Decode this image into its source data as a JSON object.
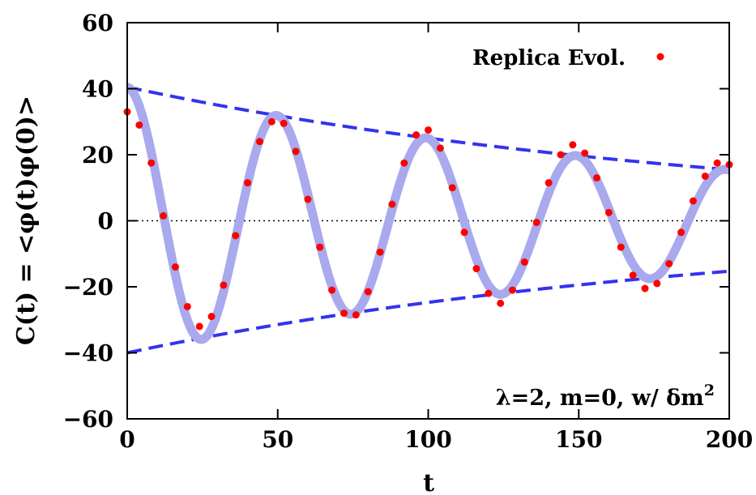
{
  "chart_data": {
    "type": "line",
    "xlabel": "t",
    "ylabel": "C(t) = <φ(t)φ(0)>",
    "xlim": [
      0,
      200
    ],
    "ylim": [
      -60,
      60
    ],
    "x_ticks": [
      0,
      50,
      100,
      150,
      200
    ],
    "y_ticks": [
      -60,
      -40,
      -20,
      0,
      20,
      40,
      60
    ],
    "x_tick_labels": [
      "0",
      "50",
      "100",
      "150",
      "200"
    ],
    "y_tick_labels": [
      "−60",
      "−40",
      "−20",
      "0",
      "20",
      "40",
      "60"
    ],
    "grid": false,
    "legend_position": "top-right",
    "annotation": {
      "main": "λ=2, m=0, w/ δm",
      "superscript": "2"
    },
    "series": [
      {
        "name": "Replica Evol.",
        "style": "points",
        "color": "#ff0000",
        "x": [
          0,
          4,
          8,
          12,
          16,
          20,
          24,
          28,
          32,
          36,
          40,
          44,
          48,
          52,
          56,
          60,
          64,
          68,
          72,
          76,
          80,
          84,
          88,
          92,
          96,
          100,
          104,
          108,
          112,
          116,
          120,
          124,
          128,
          132,
          136,
          140,
          144,
          148,
          152,
          156,
          160,
          164,
          168,
          172,
          176,
          180,
          184,
          188,
          192,
          196,
          200
        ],
        "y": [
          33,
          29,
          17.5,
          1.5,
          -14,
          -26,
          -32,
          -29,
          -19.5,
          -4.5,
          11.5,
          24,
          30,
          29.5,
          21,
          6.5,
          -8,
          -21,
          -28,
          -28.5,
          -21.5,
          -9.5,
          5,
          17.5,
          26,
          27.5,
          22,
          10,
          -3.5,
          -14.5,
          -22,
          -25,
          -21,
          -12.5,
          -0.5,
          11.5,
          20,
          23,
          20.5,
          13,
          2.5,
          -8,
          -16.5,
          -20.5,
          -19,
          -13,
          -3.5,
          6,
          13.5,
          17.5,
          17
        ]
      },
      {
        "style": "thick-line",
        "color": "#a9a9ee",
        "formula": "40.5*exp(-0.00481*t)*cos(0.1264*t)"
      },
      {
        "style": "dashed-line",
        "color": "#3333ee",
        "formula": "40.5*exp(-0.00481*t)"
      },
      {
        "style": "dashed-line",
        "color": "#3333ee",
        "formula": "-40*exp(-0.00481*t)"
      },
      {
        "style": "dotted-line",
        "color": "#000000",
        "formula": "0"
      }
    ]
  }
}
